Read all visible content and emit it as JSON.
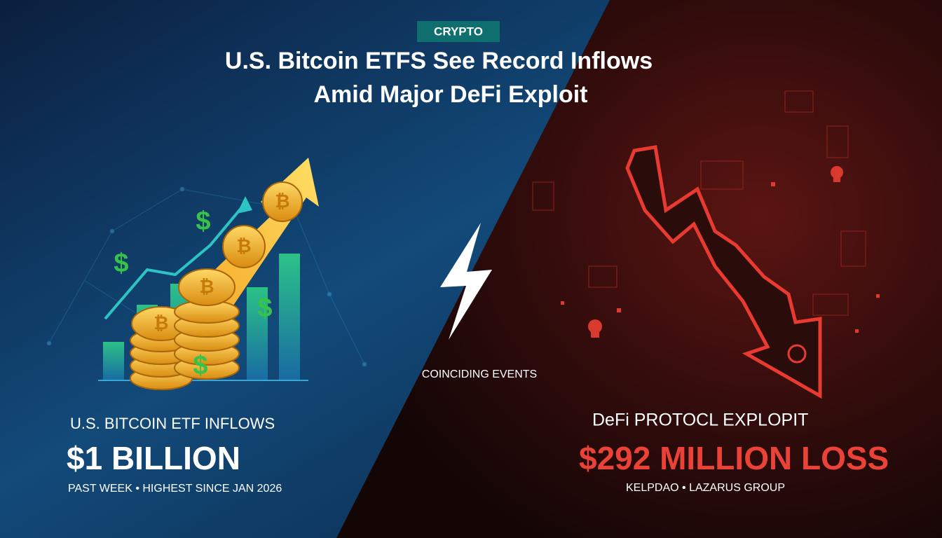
{
  "tag": "CRYPTO",
  "title_lines": [
    "U.S. Bitcoin ETFS See Record Inflows",
    "Amid Major DeFi Exploit"
  ],
  "center_label": "COINCIDING EVENTS",
  "left": {
    "label": "U.S. BITCOIN ETF INFLOWS",
    "value": "$1 BILLION",
    "detail": "PAST WEEK • HIGHEST SINCE JAN 2026"
  },
  "right": {
    "label": "DeFi PROTOCL EXPLOPIT",
    "value": "$292 MILLION LOSS",
    "detail": "KELPDAO • LAZARUS GROUP"
  }
}
